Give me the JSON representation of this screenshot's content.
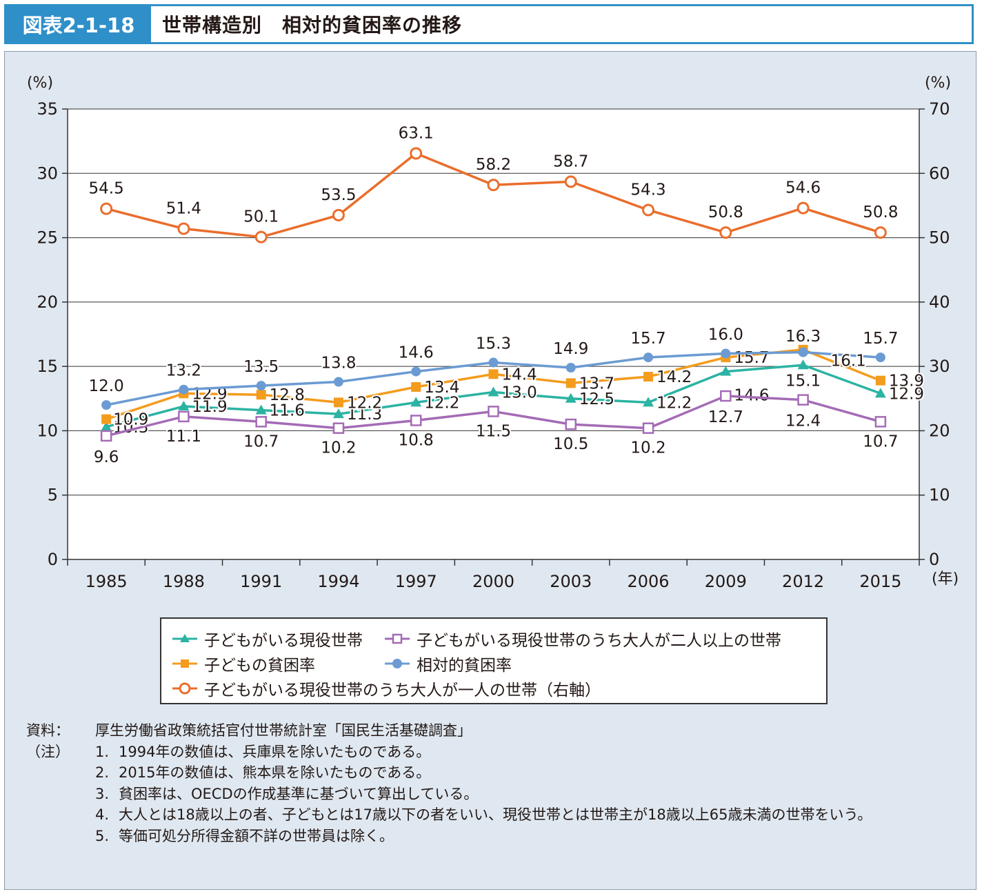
{
  "header": {
    "label": "図表2-1-18",
    "title": "世帯構造別　相対的貧困率の推移"
  },
  "chart_data": {
    "type": "line",
    "categories": [
      "1985",
      "1988",
      "1991",
      "1994",
      "1997",
      "2000",
      "2003",
      "2006",
      "2009",
      "2012",
      "2015"
    ],
    "x_unit": "(年)",
    "y_left": {
      "unit": "(%)",
      "range": [
        0,
        35
      ],
      "ticks": [
        "0",
        "5",
        "10",
        "15",
        "20",
        "25",
        "30",
        "35"
      ]
    },
    "y_right": {
      "unit": "(%)",
      "range": [
        0,
        70
      ],
      "ticks": [
        "0",
        "10",
        "20",
        "30",
        "40",
        "50",
        "60",
        "70"
      ]
    },
    "grid": true,
    "series": [
      {
        "name": "子どもがいる現役世帯",
        "marker": "triangle",
        "color": "#2bb3a3",
        "axis": "left",
        "values": [
          10.3,
          11.9,
          11.6,
          11.3,
          12.2,
          13.0,
          12.5,
          12.2,
          14.6,
          15.1,
          12.9
        ]
      },
      {
        "name": "子どもがいる現役世帯のうち大人が二人以上の世帯",
        "marker": "open-square",
        "color": "#a46bb5",
        "axis": "left",
        "values": [
          9.6,
          11.1,
          10.7,
          10.2,
          10.8,
          11.5,
          10.5,
          10.2,
          12.7,
          12.4,
          10.7
        ]
      },
      {
        "name": "子どもの貧困率",
        "marker": "square",
        "color": "#f39c1e",
        "axis": "left",
        "values": [
          10.9,
          12.9,
          12.8,
          12.2,
          13.4,
          14.4,
          13.7,
          14.2,
          15.7,
          16.3,
          13.9
        ]
      },
      {
        "name": "相対的貧困率",
        "marker": "circle",
        "color": "#6b9bd2",
        "axis": "left",
        "values": [
          12.0,
          13.2,
          13.5,
          13.8,
          14.6,
          15.3,
          14.9,
          15.7,
          16.0,
          16.1,
          15.7
        ]
      },
      {
        "name": "子どもがいる現役世帯のうち大人が一人の世帯（右軸）",
        "marker": "open-circle",
        "color": "#ea6d2c",
        "axis": "right",
        "values": [
          54.5,
          51.4,
          50.1,
          53.5,
          63.1,
          58.2,
          58.7,
          54.3,
          50.8,
          54.6,
          50.8
        ]
      }
    ]
  },
  "notes": {
    "source_prefix": "資料：",
    "source": "厚生労働省政策統括官付世帯統計室「国民生活基礎調査」",
    "note_prefix": "（注）",
    "items": [
      {
        "num": "1.",
        "text": "1994年の数値は、兵庫県を除いたものである。"
      },
      {
        "num": "2.",
        "text": "2015年の数値は、熊本県を除いたものである。"
      },
      {
        "num": "3.",
        "text": "貧困率は、OECDの作成基準に基づいて算出している。"
      },
      {
        "num": "4.",
        "text": "大人とは18歳以上の者、子どもとは17歳以下の者をいい、現役世帯とは世帯主が18歳以上65歳未満の世帯をいう。"
      },
      {
        "num": "5.",
        "text": "等価可処分所得金額不詳の世帯員は除く。"
      }
    ]
  }
}
